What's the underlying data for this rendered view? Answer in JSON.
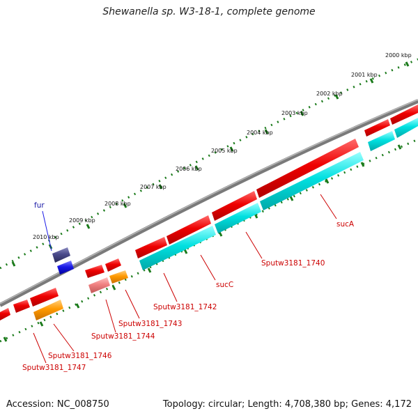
{
  "title": "Shewanella sp. W3-18-1, complete genome",
  "footer": {
    "accession": "Accession: NC_008750",
    "stats": "Topology: circular; Length: 4,708,380 bp; Genes: 4,172"
  },
  "ruler_labels": [
    "2000 kbp",
    "2001 kbp",
    "2002 kbp",
    "2003 kbp",
    "2004 kbp",
    "2005 kbp",
    "2006 kbp",
    "2007 kbp",
    "2008 kbp",
    "2009 kbp",
    "2010 kbp"
  ],
  "gene_labels": {
    "fur": "fur",
    "sucA": "sucA",
    "sputw1740": "Sputw3181_1740",
    "sucC": "sucC",
    "sputw1742": "Sputw3181_1742",
    "sputw1743": "Sputw3181_1743",
    "sputw1744": "Sputw3181_1744",
    "sputw1746": "Sputw3181_1746",
    "sputw1747": "Sputw3181_1747"
  },
  "colors": {
    "gene_red": "#ee0000",
    "cds_cyan": "#00e0e0",
    "orange": "#ff9900",
    "pink": "#f08080",
    "fur_blue": "#1a1ae6",
    "fur_dark": "#4a4a8a",
    "backbone": "#7a7a7a",
    "ticks": "#1a7a1a"
  }
}
